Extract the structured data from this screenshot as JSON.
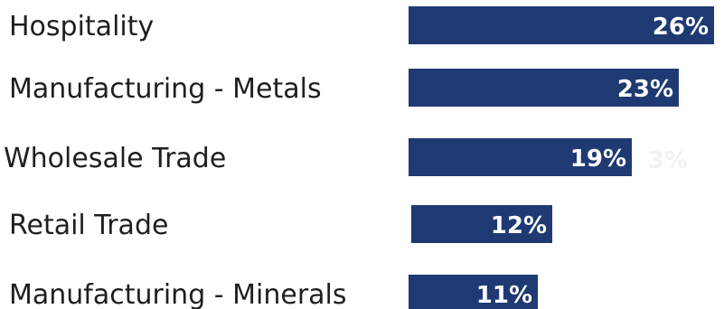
{
  "chart_data": {
    "type": "bar",
    "orientation": "horizontal",
    "categories": [
      "Hospitality",
      "Manufacturing - Metals",
      "Wholesale Trade",
      "Retail Trade",
      "Manufacturing - Minerals"
    ],
    "values": [
      26,
      23,
      19,
      12,
      11
    ],
    "value_labels": [
      "26%",
      "23%",
      "19%",
      "12%",
      "11%"
    ],
    "extra_labels": [
      {
        "category": "Wholesale Trade",
        "text": "3%"
      }
    ],
    "bar_color": "#1f3a73",
    "grid": false,
    "legend": "none"
  }
}
